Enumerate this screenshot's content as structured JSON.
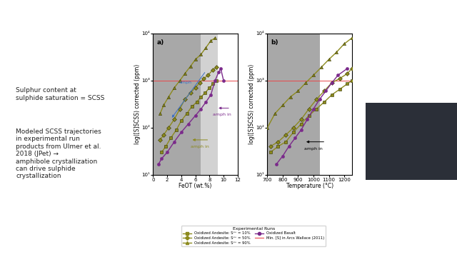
{
  "slide": {
    "left_text": [
      [
        "Sulphur content at",
        "sulphide saturation = SCSS"
      ],
      [
        "Modeled SCSS trajectories",
        "in experimental run",
        "products from Ulmer et al.",
        "2018 (JPet) →",
        "amphibole crystallization",
        "can drive sulphide",
        "crystallization"
      ]
    ]
  },
  "legend_title": "Experimental Runs",
  "legend": "lower center",
  "chart_data": [
    {
      "type": "line",
      "title": "a)",
      "x_label": "FeOT (wt.%)",
      "y_label": "log([S]SCSS) corrected (ppm)",
      "log": "y",
      "xlim": [
        0,
        12
      ],
      "xticks": [
        0,
        2,
        4,
        6,
        8,
        10,
        12
      ],
      "ylim": [
        10,
        10000
      ],
      "yticks": [
        {
          "value": 10,
          "label": "10¹"
        },
        {
          "value": 100,
          "label": "10²"
        },
        {
          "value": 1000,
          "label": "10³"
        },
        {
          "value": 10000,
          "label": "10⁴"
        }
      ],
      "shaded_ranges": [
        [
          0,
          6.8
        ],
        [
          6.8,
          9.2
        ]
      ],
      "reference_line": {
        "name": "Min. [S] in Arcs Wallace (2011)",
        "value": 1000,
        "color": "#e8484b"
      },
      "series": [
        {
          "name": "Oxidized Andesite: S⁶⁺ = 10%",
          "color": "#8c8a1e",
          "marker": "square",
          "x": [
            1.2,
            1.8,
            2.5,
            3.3,
            4.0,
            4.8,
            5.5,
            6.2,
            6.8,
            7.4,
            8.0,
            8.5,
            9.0
          ],
          "values": [
            30,
            40,
            60,
            90,
            140,
            200,
            280,
            350,
            450,
            550,
            700,
            850,
            1000
          ]
        },
        {
          "name": "Oxidized Andesite: S⁶⁺ = 50%",
          "color": "#8c8a1e",
          "marker": "diamond",
          "x": [
            1.0,
            1.5,
            2.2,
            3.0,
            3.8,
            4.5,
            5.3,
            6.0,
            6.6,
            7.2,
            7.8,
            8.5,
            9.0
          ],
          "values": [
            55,
            70,
            100,
            150,
            250,
            400,
            550,
            700,
            900,
            1100,
            1300,
            1700,
            1900
          ]
        },
        {
          "name": "Oxidized Andesite: S⁶⁺ = 90%",
          "color": "#8c8a1e",
          "marker": "triangle",
          "x": [
            1.0,
            1.5,
            2.2,
            3.0,
            3.8,
            4.5,
            5.3,
            6.0,
            6.8,
            7.5,
            8.2,
            8.8
          ],
          "values": [
            200,
            300,
            450,
            700,
            1000,
            1400,
            2000,
            2800,
            3600,
            5000,
            7000,
            8000
          ]
        },
        {
          "name": "Oxidized Basalt",
          "color": "#7b2a8b",
          "marker": "circle",
          "x": [
            0.8,
            1.2,
            2.0,
            3.0,
            4.0,
            5.0,
            6.0,
            6.8,
            7.5,
            8.2,
            8.8,
            9.3,
            9.6,
            10.0
          ],
          "values": [
            17,
            22,
            30,
            50,
            80,
            120,
            180,
            250,
            350,
            500,
            1000,
            1500,
            1800,
            1000
          ]
        }
      ],
      "annotations": [
        {
          "text": "amph in",
          "color": "#7b2a8b",
          "text_xy": [
            9.8,
            190
          ],
          "arrow_from": [
            11.0,
            260
          ],
          "arrow_to": [
            9.0,
            260
          ]
        },
        {
          "text": "amph in",
          "color": "#8c8a1e",
          "text_xy": [
            6.6,
            40
          ],
          "arrow_from": [
            8.0,
            55
          ],
          "arrow_to": [
            5.3,
            55
          ]
        },
        {
          "text": "amph",
          "color": "#3a6fc4",
          "text_xy": [
            4.6,
            900
          ],
          "arrow_from": [
            7.5,
            1600
          ],
          "arrow_to": [
            2.5,
            150
          ]
        }
      ]
    },
    {
      "type": "line",
      "title": "b)",
      "x_label": "Temperature (°C)",
      "y_label": "log([S]SCSS) corrected (ppm)",
      "log": "y",
      "xlim": [
        700,
        1250
      ],
      "xticks": [
        700,
        800,
        900,
        1000,
        1100,
        1200
      ],
      "ylim": [
        10,
        10000
      ],
      "yticks": [
        {
          "value": 10,
          "label": "10¹"
        },
        {
          "value": 100,
          "label": "10²"
        },
        {
          "value": 1000,
          "label": "10³"
        },
        {
          "value": 10000,
          "label": "10⁴"
        }
      ],
      "shaded_ranges": [
        [
          700,
          1040
        ]
      ],
      "reference_line": {
        "name": "Min. [S] in Arcs Wallace (2011)",
        "value": 1000,
        "color": "#e8484b"
      },
      "series": [
        {
          "name": "Oxidized Andesite: S⁶⁺ = 10%",
          "color": "#8c8a1e",
          "marker": "square",
          "x": [
            720,
            770,
            820,
            870,
            920,
            970,
            1020,
            1070,
            1120,
            1170,
            1220,
            1250
          ],
          "values": [
            30,
            40,
            50,
            80,
            120,
            180,
            250,
            350,
            500,
            650,
            850,
            1000
          ]
        },
        {
          "name": "Oxidized Andesite: S⁶⁺ = 50%",
          "color": "#8c8a1e",
          "marker": "diamond",
          "x": [
            720,
            770,
            820,
            870,
            920,
            970,
            1020,
            1070,
            1120,
            1170,
            1220,
            1250
          ],
          "values": [
            40,
            50,
            70,
            100,
            150,
            250,
            400,
            600,
            900,
            1100,
            1400,
            1800
          ]
        },
        {
          "name": "Oxidized Andesite: S⁶⁺ = 90%",
          "color": "#8c8a1e",
          "marker": "triangle",
          "x": [
            700,
            750,
            800,
            850,
            900,
            950,
            1000,
            1050,
            1100,
            1150,
            1200,
            1250
          ],
          "values": [
            100,
            200,
            300,
            450,
            600,
            900,
            1300,
            1900,
            2800,
            4000,
            6000,
            8000
          ]
        },
        {
          "name": "Oxidized Basalt",
          "color": "#7b2a8b",
          "marker": "circle",
          "x": [
            760,
            800,
            840,
            880,
            920,
            960,
            1000,
            1040,
            1080,
            1120,
            1160,
            1220
          ],
          "values": [
            17,
            25,
            40,
            60,
            90,
            150,
            250,
            400,
            600,
            900,
            1300,
            1800
          ]
        }
      ],
      "annotations": [
        {
          "text": "amph in",
          "color": "#000000",
          "text_xy": [
            1000,
            36
          ],
          "arrow_from": [
            1080,
            50
          ],
          "arrow_to": [
            940,
            50
          ]
        }
      ]
    }
  ]
}
